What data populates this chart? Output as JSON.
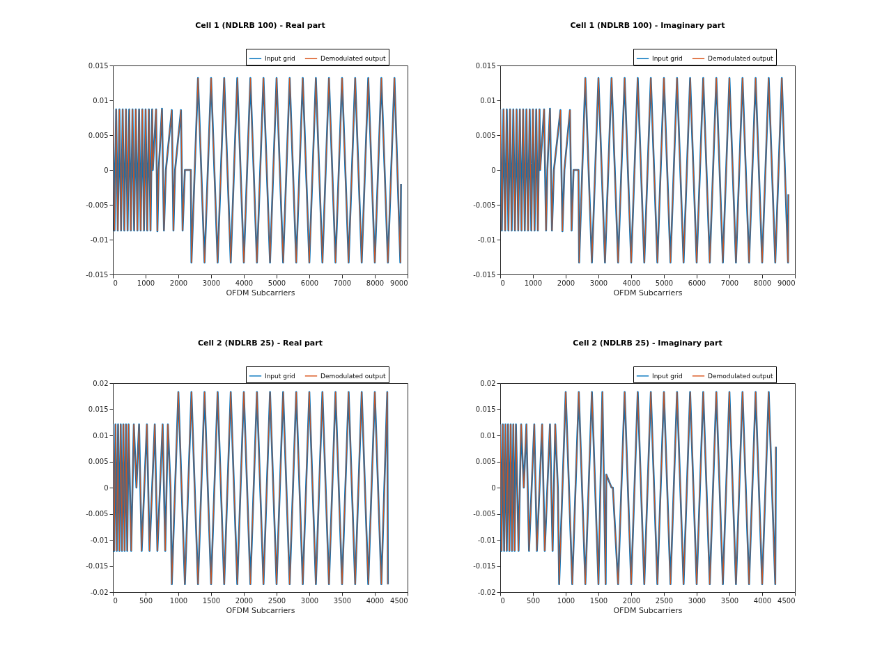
{
  "chart_data": [
    {
      "type": "line",
      "title": "Cell 1 (NDLRB 100) - Real part",
      "xlabel": "OFDM Subcarriers",
      "xlim": [
        0,
        9000
      ],
      "xticks": [
        0,
        1000,
        2000,
        3000,
        4000,
        5000,
        6000,
        7000,
        8000,
        9000
      ],
      "ylim": [
        -0.015,
        0.015
      ],
      "yticks": [
        -0.015,
        -0.01,
        -0.005,
        0,
        0.005,
        0.01,
        0.015
      ],
      "legend": "top right",
      "x": [
        0,
        50,
        100,
        150,
        200,
        250,
        300,
        350,
        400,
        450,
        500,
        550,
        600,
        650,
        700,
        750,
        800,
        850,
        900,
        950,
        1000,
        1050,
        1100,
        1150,
        1200,
        1220,
        1320,
        1360,
        1400,
        1500,
        1560,
        1620,
        1800,
        1850,
        1900,
        2080,
        2130,
        2200,
        2380,
        2400,
        2600,
        2800,
        3000,
        3200,
        3400,
        3600,
        3800,
        4000,
        4200,
        4400,
        4600,
        4800,
        5000,
        5200,
        5400,
        5600,
        5800,
        6000,
        6200,
        6400,
        6600,
        6800,
        7000,
        7200,
        7400,
        7600,
        7800,
        8000,
        8200,
        8400,
        8600,
        8780,
        8800
      ],
      "series": [
        {
          "name": "Input grid",
          "color": "#0072bd",
          "values": [
            0.0087,
            -0.0087,
            0.0087,
            -0.0087,
            0.0087,
            -0.0087,
            0.0087,
            -0.0087,
            0.0087,
            -0.0087,
            0.0087,
            -0.0087,
            0.0087,
            -0.0087,
            0.0087,
            -0.0087,
            0.0087,
            -0.0087,
            0.0087,
            -0.0087,
            0.0087,
            -0.0087,
            0.0087,
            -0.0087,
            0.0087,
            0,
            0.0087,
            -0.0088,
            0,
            0.0088,
            -0.0087,
            0,
            0.0086,
            -0.0087,
            0,
            0.0086,
            -0.0087,
            0,
            0,
            -0.0133,
            0.0132,
            -0.0133,
            0.0132,
            -0.0133,
            0.0132,
            -0.0133,
            0.0132,
            -0.0133,
            0.0132,
            -0.0133,
            0.0132,
            -0.0133,
            0.0132,
            -0.0133,
            0.0132,
            -0.0133,
            0.0132,
            -0.0133,
            0.0132,
            -0.0133,
            0.0132,
            -0.0133,
            0.0132,
            -0.0133,
            0.0132,
            -0.0133,
            0.0132,
            -0.0133,
            0.0132,
            -0.0133,
            0.0132,
            -0.0133,
            -0.002
          ]
        },
        {
          "name": "Demodulated output",
          "color": "#d95319",
          "values": [
            0.0087,
            -0.0087,
            0.0087,
            -0.0087,
            0.0087,
            -0.0087,
            0.0087,
            -0.0087,
            0.0087,
            -0.0087,
            0.0087,
            -0.0087,
            0.0087,
            -0.0087,
            0.0087,
            -0.0087,
            0.0087,
            -0.0087,
            0.0087,
            -0.0087,
            0.0087,
            -0.0087,
            0.0087,
            -0.0087,
            0.0087,
            0,
            0.0087,
            -0.0088,
            0,
            0.0088,
            -0.0087,
            0,
            0.0086,
            -0.0087,
            0,
            0.0086,
            -0.0087,
            0,
            0,
            -0.0133,
            0.0132,
            -0.0133,
            0.0132,
            -0.0133,
            0.0132,
            -0.0133,
            0.0132,
            -0.0133,
            0.0132,
            -0.0133,
            0.0132,
            -0.0133,
            0.0132,
            -0.0133,
            0.0132,
            -0.0133,
            0.0132,
            -0.0133,
            0.0132,
            -0.0133,
            0.0132,
            -0.0133,
            0.0132,
            -0.0133,
            0.0132,
            -0.0133,
            0.0132,
            -0.0133,
            0.0132,
            -0.0133,
            0.0132,
            -0.0133,
            -0.002
          ]
        }
      ]
    },
    {
      "type": "line",
      "title": "Cell 1 (NDLRB 100) - Imaginary part",
      "xlabel": "OFDM Subcarriers",
      "xlim": [
        0,
        9000
      ],
      "xticks": [
        0,
        1000,
        2000,
        3000,
        4000,
        5000,
        6000,
        7000,
        8000,
        9000
      ],
      "ylim": [
        -0.015,
        0.015
      ],
      "yticks": [
        -0.015,
        -0.01,
        -0.005,
        0,
        0.005,
        0.01,
        0.015
      ],
      "legend": "top right",
      "x": [
        0,
        50,
        100,
        150,
        200,
        250,
        300,
        350,
        400,
        450,
        500,
        550,
        600,
        650,
        700,
        750,
        800,
        850,
        900,
        950,
        1000,
        1050,
        1100,
        1150,
        1200,
        1220,
        1340,
        1400,
        1440,
        1520,
        1580,
        1640,
        1840,
        1900,
        1960,
        2130,
        2180,
        2240,
        2390,
        2410,
        2600,
        2800,
        3000,
        3200,
        3400,
        3600,
        3800,
        4000,
        4200,
        4400,
        4600,
        4800,
        5000,
        5200,
        5400,
        5600,
        5800,
        6000,
        6200,
        6400,
        6600,
        6800,
        7000,
        7200,
        7400,
        7600,
        7800,
        8000,
        8200,
        8400,
        8600,
        8790,
        8800
      ],
      "series": [
        {
          "name": "Input grid",
          "color": "#0072bd",
          "values": [
            0.0087,
            -0.0087,
            0.0087,
            -0.0087,
            0.0087,
            -0.0087,
            0.0087,
            -0.0087,
            0.0087,
            -0.0087,
            0.0087,
            -0.0087,
            0.0087,
            -0.0087,
            0.0087,
            -0.0087,
            0.0087,
            -0.0087,
            0.0087,
            -0.0087,
            0.0087,
            -0.0087,
            0.0087,
            -0.0087,
            0.0087,
            0,
            0.0087,
            -0.0087,
            0,
            0.0088,
            -0.0087,
            0,
            0.0086,
            -0.0088,
            0,
            0.0086,
            -0.0087,
            0,
            0,
            -0.0133,
            0.0132,
            -0.0133,
            0.0132,
            -0.0133,
            0.0132,
            -0.0133,
            0.0132,
            -0.0133,
            0.0132,
            -0.0133,
            0.0132,
            -0.0133,
            0.0132,
            -0.0133,
            0.0132,
            -0.0133,
            0.0132,
            -0.0133,
            0.0132,
            -0.0133,
            0.0132,
            -0.0133,
            0.0132,
            -0.0133,
            0.0132,
            -0.0133,
            0.0132,
            -0.0133,
            0.0132,
            -0.0133,
            0.0132,
            -0.0133,
            -0.0035
          ]
        },
        {
          "name": "Demodulated output",
          "color": "#d95319",
          "values": [
            0.0087,
            -0.0087,
            0.0087,
            -0.0087,
            0.0087,
            -0.0087,
            0.0087,
            -0.0087,
            0.0087,
            -0.0087,
            0.0087,
            -0.0087,
            0.0087,
            -0.0087,
            0.0087,
            -0.0087,
            0.0087,
            -0.0087,
            0.0087,
            -0.0087,
            0.0087,
            -0.0087,
            0.0087,
            -0.0087,
            0.0087,
            0,
            0.0087,
            -0.0087,
            0,
            0.0088,
            -0.0087,
            0,
            0.0086,
            -0.0088,
            0,
            0.0086,
            -0.0087,
            0,
            0,
            -0.0133,
            0.0132,
            -0.0133,
            0.0132,
            -0.0133,
            0.0132,
            -0.0133,
            0.0132,
            -0.0133,
            0.0132,
            -0.0133,
            0.0132,
            -0.0133,
            0.0132,
            -0.0133,
            0.0132,
            -0.0133,
            0.0132,
            -0.0133,
            0.0132,
            -0.0133,
            0.0132,
            -0.0133,
            0.0132,
            -0.0133,
            0.0132,
            -0.0133,
            0.0132,
            -0.0133,
            0.0132,
            -0.0133,
            0.0132,
            -0.0133,
            -0.0035
          ]
        }
      ]
    },
    {
      "type": "line",
      "title": "Cell 2 (NDLRB 25) - Real part",
      "xlabel": "OFDM Subcarriers",
      "xlim": [
        0,
        4500
      ],
      "xticks": [
        0,
        500,
        1000,
        1500,
        2000,
        2500,
        3000,
        3500,
        4000,
        4500
      ],
      "ylim": [
        -0.02,
        0.02
      ],
      "yticks": [
        -0.02,
        -0.015,
        -0.01,
        -0.005,
        0,
        0.005,
        0.01,
        0.015,
        0.02
      ],
      "legend": "top right",
      "x": [
        0,
        20,
        40,
        60,
        80,
        100,
        120,
        140,
        160,
        180,
        200,
        220,
        240,
        280,
        320,
        360,
        400,
        440,
        480,
        520,
        560,
        600,
        640,
        680,
        720,
        760,
        800,
        840,
        880,
        900,
        1000,
        1100,
        1200,
        1300,
        1400,
        1500,
        1600,
        1700,
        1800,
        1900,
        2000,
        2100,
        2200,
        2300,
        2400,
        2500,
        2600,
        2700,
        2800,
        2900,
        3000,
        3100,
        3200,
        3300,
        3400,
        3500,
        3600,
        3700,
        3800,
        3900,
        4000,
        4100,
        4190,
        4200
      ],
      "series": [
        {
          "name": "Input grid",
          "color": "#0072bd",
          "values": [
            0.0121,
            -0.0121,
            0.0121,
            -0.0121,
            0.0121,
            -0.0121,
            0.0121,
            -0.0121,
            0.0121,
            -0.0121,
            0.0121,
            -0.0121,
            0.0121,
            -0.0121,
            0.0121,
            0,
            0.0121,
            -0.0121,
            0,
            0.0121,
            -0.0121,
            0,
            0.0121,
            -0.0121,
            0,
            0.0121,
            -0.0121,
            0.0121,
            0,
            -0.0185,
            0.0183,
            -0.0185,
            0.0183,
            -0.0185,
            0.0183,
            -0.0185,
            0.0183,
            -0.0185,
            0.0183,
            -0.0185,
            0.0183,
            -0.0185,
            0.0183,
            -0.0185,
            0.0183,
            -0.0185,
            0.0183,
            -0.0185,
            0.0183,
            -0.0185,
            0.0183,
            -0.0185,
            0.0183,
            -0.0185,
            0.0183,
            -0.0185,
            0.0183,
            -0.0185,
            0.0183,
            -0.0185,
            0.0183,
            -0.0185,
            0.0183,
            -0.0185
          ]
        },
        {
          "name": "Demodulated output",
          "color": "#d95319",
          "values": [
            0.0121,
            -0.0121,
            0.0121,
            -0.0121,
            0.0121,
            -0.0121,
            0.0121,
            -0.0121,
            0.0121,
            -0.0121,
            0.0121,
            -0.0121,
            0.0121,
            -0.0121,
            0.0121,
            0,
            0.0121,
            -0.0121,
            0,
            0.0121,
            -0.0121,
            0,
            0.0121,
            -0.0121,
            0,
            0.0121,
            -0.0121,
            0.0121,
            0,
            -0.0185,
            0.0183,
            -0.0185,
            0.0183,
            -0.0185,
            0.0183,
            -0.0185,
            0.0183,
            -0.0185,
            0.0183,
            -0.0185,
            0.0183,
            -0.0185,
            0.0183,
            -0.0185,
            0.0183,
            -0.0185,
            0.0183,
            -0.0185,
            0.0183,
            -0.0185,
            0.0183,
            -0.0185,
            0.0183,
            -0.0185,
            0.0183,
            -0.0185,
            0.0183,
            -0.0185,
            0.0183,
            -0.0185,
            0.0183,
            -0.0185,
            0.0183,
            -0.0185
          ]
        }
      ]
    },
    {
      "type": "line",
      "title": "Cell 2 (NDLRB 25) - Imaginary part",
      "xlabel": "OFDM Subcarriers",
      "xlim": [
        0,
        4500
      ],
      "xticks": [
        0,
        500,
        1000,
        1500,
        2000,
        2500,
        3000,
        3500,
        4000,
        4500
      ],
      "ylim": [
        -0.02,
        0.02
      ],
      "yticks": [
        -0.02,
        -0.015,
        -0.01,
        -0.005,
        0,
        0.005,
        0.01,
        0.015,
        0.02
      ],
      "legend": "top right",
      "x": [
        0,
        20,
        40,
        60,
        80,
        100,
        120,
        140,
        160,
        180,
        200,
        220,
        240,
        280,
        320,
        360,
        400,
        440,
        480,
        520,
        560,
        600,
        640,
        680,
        720,
        760,
        800,
        840,
        880,
        900,
        1000,
        1100,
        1200,
        1300,
        1400,
        1500,
        1560,
        1610,
        1620,
        1700,
        1720,
        1800,
        1900,
        2000,
        2100,
        2200,
        2300,
        2400,
        2500,
        2600,
        2700,
        2800,
        2900,
        3000,
        3100,
        3200,
        3300,
        3400,
        3500,
        3600,
        3700,
        3800,
        3900,
        4000,
        4100,
        4200,
        4210
      ],
      "series": [
        {
          "name": "Input grid",
          "color": "#0072bd",
          "values": [
            0.0121,
            -0.0121,
            0.0121,
            -0.0121,
            0.0121,
            -0.0121,
            0.0121,
            -0.0121,
            0.0121,
            -0.0121,
            0.0121,
            -0.0121,
            0.0121,
            -0.0121,
            0.0121,
            0,
            0.0121,
            -0.0121,
            0,
            0.0121,
            -0.0121,
            0,
            0.0121,
            -0.0121,
            0,
            0.0121,
            -0.0121,
            0.0121,
            0,
            -0.0185,
            0.0183,
            -0.0185,
            0.0183,
            -0.0185,
            0.0183,
            -0.0185,
            0.0183,
            -0.0185,
            0.0025,
            0,
            0,
            -0.0185,
            0.0183,
            -0.0185,
            0.0183,
            -0.0185,
            0.0183,
            -0.0185,
            0.0183,
            -0.0185,
            0.0183,
            -0.0185,
            0.0183,
            -0.0185,
            0.0183,
            -0.0185,
            0.0183,
            -0.0185,
            0.0183,
            -0.0185,
            0.0183,
            -0.0185,
            0.0183,
            -0.0185,
            0.0183,
            -0.0185,
            0.0078
          ]
        },
        {
          "name": "Demodulated output",
          "color": "#d95319",
          "values": [
            0.0121,
            -0.0121,
            0.0121,
            -0.0121,
            0.0121,
            -0.0121,
            0.0121,
            -0.0121,
            0.0121,
            -0.0121,
            0.0121,
            -0.0121,
            0.0121,
            -0.0121,
            0.0121,
            0,
            0.0121,
            -0.0121,
            0,
            0.0121,
            -0.0121,
            0,
            0.0121,
            -0.0121,
            0,
            0.0121,
            -0.0121,
            0.0121,
            0,
            -0.0185,
            0.0183,
            -0.0185,
            0.0183,
            -0.0185,
            0.0183,
            -0.0185,
            0.0183,
            -0.0185,
            0.0025,
            0,
            0,
            -0.0185,
            0.0183,
            -0.0185,
            0.0183,
            -0.0185,
            0.0183,
            -0.0185,
            0.0183,
            -0.0185,
            0.0183,
            -0.0185,
            0.0183,
            -0.0185,
            0.0183,
            -0.0185,
            0.0183,
            -0.0185,
            0.0183,
            -0.0185,
            0.0183,
            -0.0185,
            0.0183,
            -0.0185,
            0.0183,
            -0.0185,
            0.0078
          ]
        }
      ]
    }
  ]
}
